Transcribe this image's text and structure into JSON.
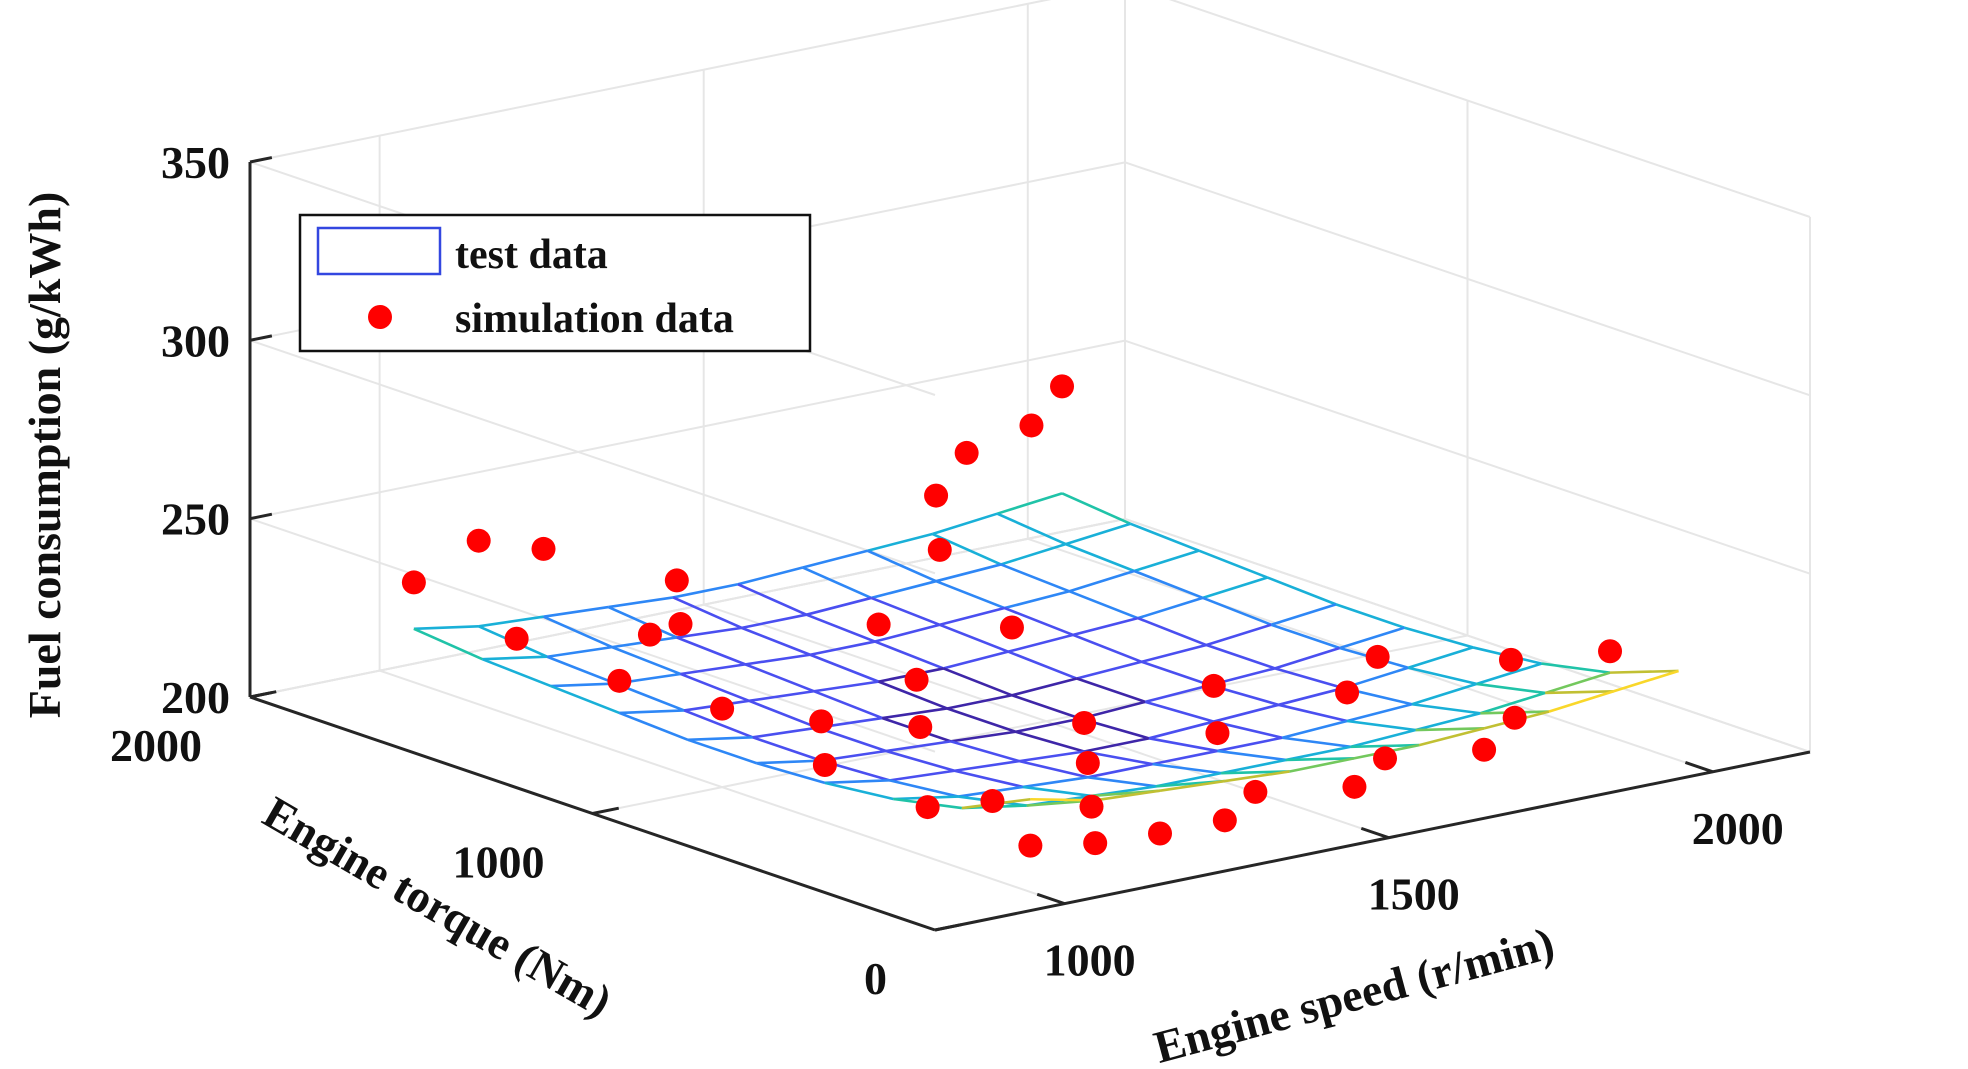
{
  "chart_data": {
    "type": "surface3d",
    "title": "",
    "xlabel": "Engine speed (r/min)",
    "ylabel": "Engine torque (Nm)",
    "zlabel": "Fuel consumption (g/kWh)",
    "xlim": [
      800,
      2150
    ],
    "ylim": [
      0,
      2000
    ],
    "zlim": [
      200,
      350
    ],
    "xticks": [
      {
        "value": 1000,
        "label": "1000"
      },
      {
        "value": 1500,
        "label": "1500"
      },
      {
        "value": 2000,
        "label": "2000"
      }
    ],
    "yticks": [
      {
        "value": 0,
        "label": "0"
      },
      {
        "value": 1000,
        "label": "1000"
      },
      {
        "value": 2000,
        "label": "2000"
      }
    ],
    "zticks": [
      {
        "value": 200,
        "label": "200"
      },
      {
        "value": 250,
        "label": "250"
      },
      {
        "value": 300,
        "label": "300"
      },
      {
        "value": 350,
        "label": "350"
      }
    ],
    "grid": true,
    "legend": {
      "position": "top-left",
      "entries": [
        {
          "label": "test data",
          "symbol": "surface",
          "color": "#2b3bd6"
        },
        {
          "label": "simulation data",
          "symbol": "marker",
          "color": "#ff0000"
        }
      ]
    },
    "colormap": [
      "#3e26a8",
      "#4a4ff0",
      "#2e87f6",
      "#19b0d8",
      "#20c3a8",
      "#73c85d",
      "#c1c033",
      "#f9d72a",
      "#f9fb15"
    ],
    "surface": {
      "speeds": [
        1000,
        1100,
        1200,
        1300,
        1400,
        1500,
        1600,
        1700,
        1800,
        1900,
        2000
      ],
      "torques": [
        100,
        300,
        500,
        700,
        900,
        1100,
        1300,
        1500,
        1700,
        1900
      ],
      "fuel": [
        [
          226,
          222,
          221,
          220,
          219,
          219,
          219,
          220,
          221,
          223,
          225
        ],
        [
          217,
          214,
          213,
          212,
          212,
          212,
          212,
          213,
          214,
          216,
          218
        ],
        [
          213,
          210,
          209,
          208,
          208,
          208,
          208,
          209,
          210,
          212,
          214
        ],
        [
          211,
          208,
          207,
          206,
          205,
          205,
          206,
          207,
          208,
          210,
          212
        ],
        [
          210,
          207,
          206,
          205,
          204,
          204,
          205,
          206,
          207,
          209,
          211
        ],
        [
          210,
          207,
          206,
          205,
          204,
          204,
          205,
          206,
          207,
          209,
          211
        ],
        [
          211,
          208,
          207,
          206,
          205,
          205,
          206,
          207,
          208,
          210,
          212
        ],
        [
          212,
          209,
          208,
          207,
          206,
          206,
          207,
          208,
          209,
          211,
          213
        ],
        [
          213,
          210,
          209,
          208,
          207,
          207,
          208,
          209,
          210,
          212,
          214
        ],
        [
          215,
          212,
          211,
          210,
          209,
          209,
          210,
          211,
          212,
          214,
          216
        ]
      ]
    },
    "simulation_points": [
      {
        "speed": 1000,
        "torque": 1900,
        "fuel": 228
      },
      {
        "speed": 1000,
        "torque": 1600,
        "fuel": 222
      },
      {
        "speed": 1000,
        "torque": 1300,
        "fuel": 220
      },
      {
        "speed": 1000,
        "torque": 1000,
        "fuel": 222
      },
      {
        "speed": 1000,
        "torque": 700,
        "fuel": 216
      },
      {
        "speed": 1000,
        "torque": 400,
        "fuel": 214
      },
      {
        "speed": 1000,
        "torque": 100,
        "fuel": 213
      },
      {
        "speed": 1100,
        "torque": 1900,
        "fuel": 236
      },
      {
        "speed": 1100,
        "torque": 1400,
        "fuel": 226
      },
      {
        "speed": 1100,
        "torque": 900,
        "fuel": 218
      },
      {
        "speed": 1100,
        "torque": 400,
        "fuel": 212
      },
      {
        "speed": 1100,
        "torque": 100,
        "fuel": 210
      },
      {
        "speed": 1200,
        "torque": 1900,
        "fuel": 230
      },
      {
        "speed": 1200,
        "torque": 1500,
        "fuel": 222
      },
      {
        "speed": 1200,
        "torque": 800,
        "fuel": 216
      },
      {
        "speed": 1200,
        "torque": 300,
        "fuel": 210
      },
      {
        "speed": 1200,
        "torque": 100,
        "fuel": 209
      },
      {
        "speed": 1300,
        "torque": 1700,
        "fuel": 224
      },
      {
        "speed": 1300,
        "torque": 1000,
        "fuel": 219
      },
      {
        "speed": 1300,
        "torque": 500,
        "fuel": 212
      },
      {
        "speed": 1300,
        "torque": 100,
        "fuel": 209
      },
      {
        "speed": 1400,
        "torque": 1300,
        "fuel": 221
      },
      {
        "speed": 1400,
        "torque": 700,
        "fuel": 213
      },
      {
        "speed": 1400,
        "torque": 200,
        "fuel": 210
      },
      {
        "speed": 1500,
        "torque": 1100,
        "fuel": 223
      },
      {
        "speed": 1500,
        "torque": 500,
        "fuel": 213
      },
      {
        "speed": 1500,
        "torque": 100,
        "fuel": 211
      },
      {
        "speed": 1600,
        "torque": 1500,
        "fuel": 228
      },
      {
        "speed": 1600,
        "torque": 700,
        "fuel": 216
      },
      {
        "speed": 1600,
        "torque": 200,
        "fuel": 212
      },
      {
        "speed": 1700,
        "torque": 1700,
        "fuel": 233
      },
      {
        "speed": 1700,
        "torque": 500,
        "fuel": 217
      },
      {
        "speed": 1700,
        "torque": 100,
        "fuel": 214
      },
      {
        "speed": 1800,
        "torque": 1800,
        "fuel": 238
      },
      {
        "speed": 1800,
        "torque": 600,
        "fuel": 220
      },
      {
        "speed": 1800,
        "torque": 200,
        "fuel": 216
      },
      {
        "speed": 1900,
        "torque": 1800,
        "fuel": 242
      },
      {
        "speed": 1900,
        "torque": 400,
        "fuel": 222
      },
      {
        "speed": 2000,
        "torque": 1900,
        "fuel": 246
      },
      {
        "speed": 2000,
        "torque": 300,
        "fuel": 224
      }
    ]
  }
}
